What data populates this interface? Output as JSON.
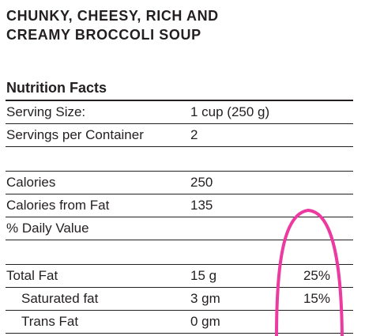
{
  "product": {
    "title_line1": "CHUNKY, CHEESY, RICH AND",
    "title_line2": "CREAMY BROCCOLI SOUP"
  },
  "nutrition": {
    "heading": "Nutrition Facts",
    "rows": [
      {
        "label": "Serving Size:",
        "value": "1 cup (250 g)",
        "pct": ""
      },
      {
        "label": "Servings per Container",
        "value": "2",
        "pct": ""
      },
      {
        "label": "",
        "value": "",
        "pct": ""
      },
      {
        "label": "Calories",
        "value": "250",
        "pct": ""
      },
      {
        "label": "Calories from Fat",
        "value": "135",
        "pct": ""
      },
      {
        "label": "% Daily Value",
        "value": "",
        "pct": ""
      },
      {
        "label": "",
        "value": "",
        "pct": ""
      },
      {
        "label": "Total Fat",
        "value": "15 g",
        "pct": "25%"
      },
      {
        "label": "Saturated fat",
        "value": "3 gm",
        "pct": "15%"
      },
      {
        "label": "Trans Fat",
        "value": "0 gm",
        "pct": ""
      }
    ]
  },
  "annotation": {
    "color": "#ec3aa0"
  }
}
